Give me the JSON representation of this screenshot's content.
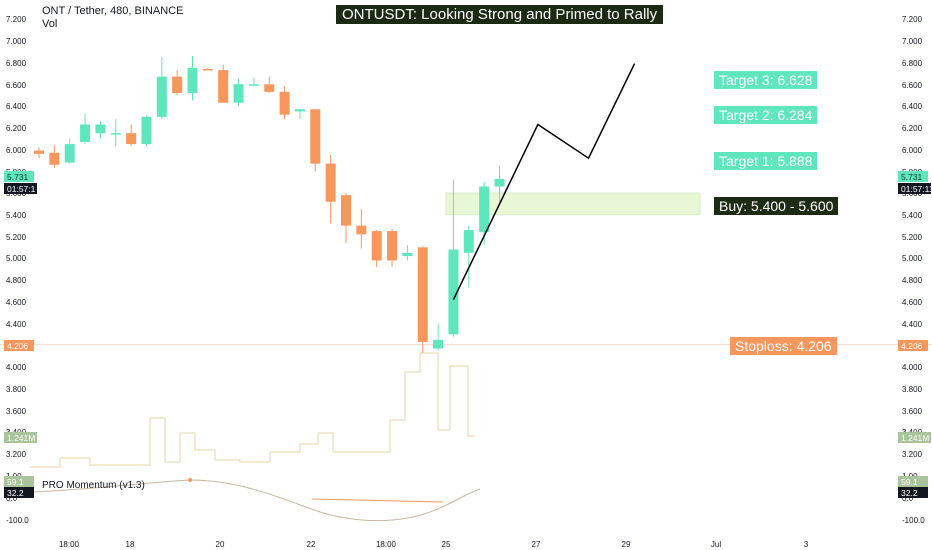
{
  "header": {
    "symbol": "ONT / Tether, 480, BINANCE",
    "volume_label": "Vol"
  },
  "title": "ONTUSDT: Looking Strong and Primed to Rally",
  "indicator_label": "PRO Momentum (v1.3)",
  "colors": {
    "up": "#5fe6bd",
    "down": "#f7975c",
    "buy_zone": "#e8f8d6",
    "dark": "#1e2b14"
  },
  "price_badges": {
    "last_price": "5.731",
    "countdown": "01:57:11",
    "countdown_left": "01:57:1",
    "stoploss_price": "4.206",
    "volume": "1.241M",
    "momentum_hi": "59.1",
    "momentum_lo": "32.2"
  },
  "annotations": {
    "target3": "Target 3: 6.628",
    "target2": "Target 2: 6.284",
    "target1": "Target 1: 5.888",
    "buy": "Buy: 5.400 - 5.600",
    "stoploss": "Stoploss: 4.206"
  },
  "chart_data": {
    "type": "candlestick",
    "y_ticks": [
      "7.200",
      "7.000",
      "6.800",
      "6.600",
      "6.400",
      "6.200",
      "6.000",
      "5.800",
      "5.600",
      "5.400",
      "5.200",
      "5.000",
      "4.800",
      "4.600",
      "4.400",
      "4.200",
      "4.000",
      "3.800",
      "3.600",
      "3.400",
      "3.200",
      "1.00",
      "0.0",
      "-100.0"
    ],
    "x_ticks": [
      "18:00",
      "18",
      "20",
      "22",
      "18:00",
      "25",
      "27",
      "29",
      "Jul",
      "3"
    ],
    "candles": [
      {
        "o": 5.99,
        "h": 6.02,
        "l": 5.92,
        "c": 5.96
      },
      {
        "o": 5.97,
        "h": 6.04,
        "l": 5.83,
        "c": 5.86
      },
      {
        "o": 5.88,
        "h": 6.1,
        "l": 5.87,
        "c": 6.05
      },
      {
        "o": 6.07,
        "h": 6.33,
        "l": 6.05,
        "c": 6.23
      },
      {
        "o": 6.15,
        "h": 6.26,
        "l": 6.1,
        "c": 6.23
      },
      {
        "o": 6.15,
        "h": 6.28,
        "l": 6.03,
        "c": 6.15
      },
      {
        "o": 6.15,
        "h": 6.23,
        "l": 6.03,
        "c": 6.05
      },
      {
        "o": 6.05,
        "h": 6.31,
        "l": 6.03,
        "c": 6.3
      },
      {
        "o": 6.3,
        "h": 6.85,
        "l": 6.28,
        "c": 6.67
      },
      {
        "o": 6.67,
        "h": 6.73,
        "l": 6.5,
        "c": 6.52
      },
      {
        "o": 6.52,
        "h": 6.86,
        "l": 6.45,
        "c": 6.75
      },
      {
        "o": 6.74,
        "h": 6.75,
        "l": 6.73,
        "c": 6.73
      },
      {
        "o": 6.73,
        "h": 6.78,
        "l": 6.43,
        "c": 6.43
      },
      {
        "o": 6.43,
        "h": 6.65,
        "l": 6.4,
        "c": 6.6
      },
      {
        "o": 6.6,
        "h": 6.66,
        "l": 6.58,
        "c": 6.6
      },
      {
        "o": 6.6,
        "h": 6.67,
        "l": 6.52,
        "c": 6.53
      },
      {
        "o": 6.53,
        "h": 6.58,
        "l": 6.28,
        "c": 6.32
      },
      {
        "o": 6.35,
        "h": 6.37,
        "l": 6.28,
        "c": 6.37
      },
      {
        "o": 6.37,
        "h": 6.37,
        "l": 5.8,
        "c": 5.87
      },
      {
        "o": 5.87,
        "h": 5.95,
        "l": 5.32,
        "c": 5.52
      },
      {
        "o": 5.58,
        "h": 5.6,
        "l": 5.14,
        "c": 5.3
      },
      {
        "o": 5.3,
        "h": 5.45,
        "l": 5.09,
        "c": 5.22
      },
      {
        "o": 5.25,
        "h": 5.26,
        "l": 4.92,
        "c": 4.98
      },
      {
        "o": 5.25,
        "h": 5.27,
        "l": 4.92,
        "c": 4.98
      },
      {
        "o": 5.02,
        "h": 5.12,
        "l": 4.98,
        "c": 5.05
      },
      {
        "o": 5.1,
        "h": 5.11,
        "l": 4.13,
        "c": 4.23
      },
      {
        "o": 4.17,
        "h": 4.4,
        "l": 4.15,
        "c": 4.25
      },
      {
        "o": 4.3,
        "h": 5.72,
        "l": 4.28,
        "c": 5.08
      },
      {
        "o": 5.05,
        "h": 5.3,
        "l": 4.73,
        "c": 5.26
      },
      {
        "o": 5.24,
        "h": 5.7,
        "l": 5.12,
        "c": 5.66
      },
      {
        "o": 5.66,
        "h": 5.85,
        "l": 5.52,
        "c": 5.73
      }
    ],
    "projection": [
      {
        "bar": 27.0,
        "price": 4.62
      },
      {
        "bar": 32.5,
        "price": 6.23
      },
      {
        "bar": 35.8,
        "price": 5.92
      },
      {
        "bar": 38.8,
        "price": 6.79
      }
    ],
    "buy_zone": [
      5.4,
      5.6
    ],
    "targets": [
      5.888,
      6.284,
      6.628
    ],
    "stoploss": 4.206
  }
}
